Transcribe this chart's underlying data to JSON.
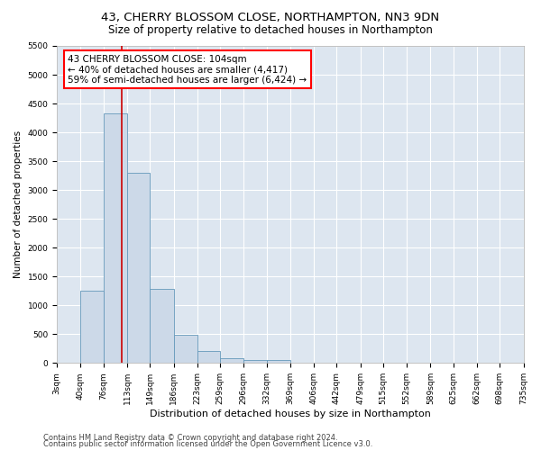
{
  "title1": "43, CHERRY BLOSSOM CLOSE, NORTHAMPTON, NN3 9DN",
  "title2": "Size of property relative to detached houses in Northampton",
  "xlabel": "Distribution of detached houses by size in Northampton",
  "ylabel": "Number of detached properties",
  "bar_color": "#ccd9e8",
  "bar_edge_color": "#6699bb",
  "background_color": "#dde6f0",
  "grid_color": "#ffffff",
  "annotation_box_text": "43 CHERRY BLOSSOM CLOSE: 104sqm\n← 40% of detached houses are smaller (4,417)\n59% of semi-detached houses are larger (6,424) →",
  "vline_x": 104,
  "vline_color": "#cc0000",
  "categories": [
    "3sqm",
    "40sqm",
    "76sqm",
    "113sqm",
    "149sqm",
    "186sqm",
    "223sqm",
    "259sqm",
    "296sqm",
    "332sqm",
    "369sqm",
    "406sqm",
    "442sqm",
    "479sqm",
    "515sqm",
    "552sqm",
    "589sqm",
    "625sqm",
    "662sqm",
    "698sqm",
    "735sqm"
  ],
  "bar_heights": [
    0,
    1260,
    4330,
    3300,
    1280,
    490,
    215,
    80,
    55,
    55,
    0,
    0,
    0,
    0,
    0,
    0,
    0,
    0,
    0,
    0,
    0
  ],
  "bin_edges": [
    3,
    40,
    76,
    113,
    149,
    186,
    223,
    259,
    296,
    332,
    369,
    406,
    442,
    479,
    515,
    552,
    589,
    625,
    662,
    698,
    735
  ],
  "ylim": [
    0,
    5500
  ],
  "yticks": [
    0,
    500,
    1000,
    1500,
    2000,
    2500,
    3000,
    3500,
    4000,
    4500,
    5000,
    5500
  ],
  "footer1": "Contains HM Land Registry data © Crown copyright and database right 2024.",
  "footer2": "Contains public sector information licensed under the Open Government Licence v3.0.",
  "title1_fontsize": 9.5,
  "title2_fontsize": 8.5,
  "xlabel_fontsize": 8,
  "ylabel_fontsize": 7.5,
  "tick_fontsize": 6.5,
  "footer_fontsize": 6,
  "annot_fontsize": 7.5
}
